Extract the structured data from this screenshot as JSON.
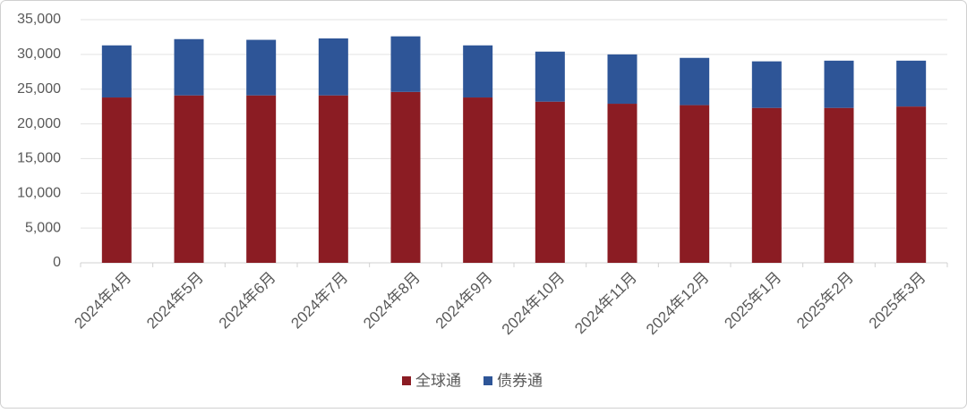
{
  "chart_data": {
    "type": "stacked_bar",
    "categories": [
      "2024年4月",
      "2024年5月",
      "2024年6月",
      "2024年7月",
      "2024年8月",
      "2024年9月",
      "2024年10月",
      "2024年11月",
      "2024年12月",
      "2025年1月",
      "2025年2月",
      "2025年3月"
    ],
    "series": [
      {
        "name": "全球通",
        "color": "#8b1c23",
        "values": [
          23800,
          24100,
          24100,
          24100,
          24600,
          23800,
          23200,
          22900,
          22700,
          22300,
          22300,
          22500
        ]
      },
      {
        "name": "债券通",
        "color": "#2e5597",
        "values": [
          7500,
          8100,
          8000,
          8200,
          8000,
          7500,
          7200,
          7100,
          6800,
          6700,
          6800,
          6600
        ]
      }
    ],
    "ylim": [
      0,
      35000
    ],
    "yticks": [
      0,
      {
        "value": 5000,
        "label": "5,000"
      },
      {
        "value": 10000,
        "label": "10,000"
      },
      {
        "value": 15000,
        "label": "15,000"
      },
      {
        "value": 20000,
        "label": "20,000"
      },
      {
        "value": 25000,
        "label": "25,000"
      },
      {
        "value": 30000,
        "label": "30,000"
      },
      {
        "value": 35000,
        "label": "35,000"
      }
    ],
    "grid": true,
    "legend": "bottom"
  }
}
